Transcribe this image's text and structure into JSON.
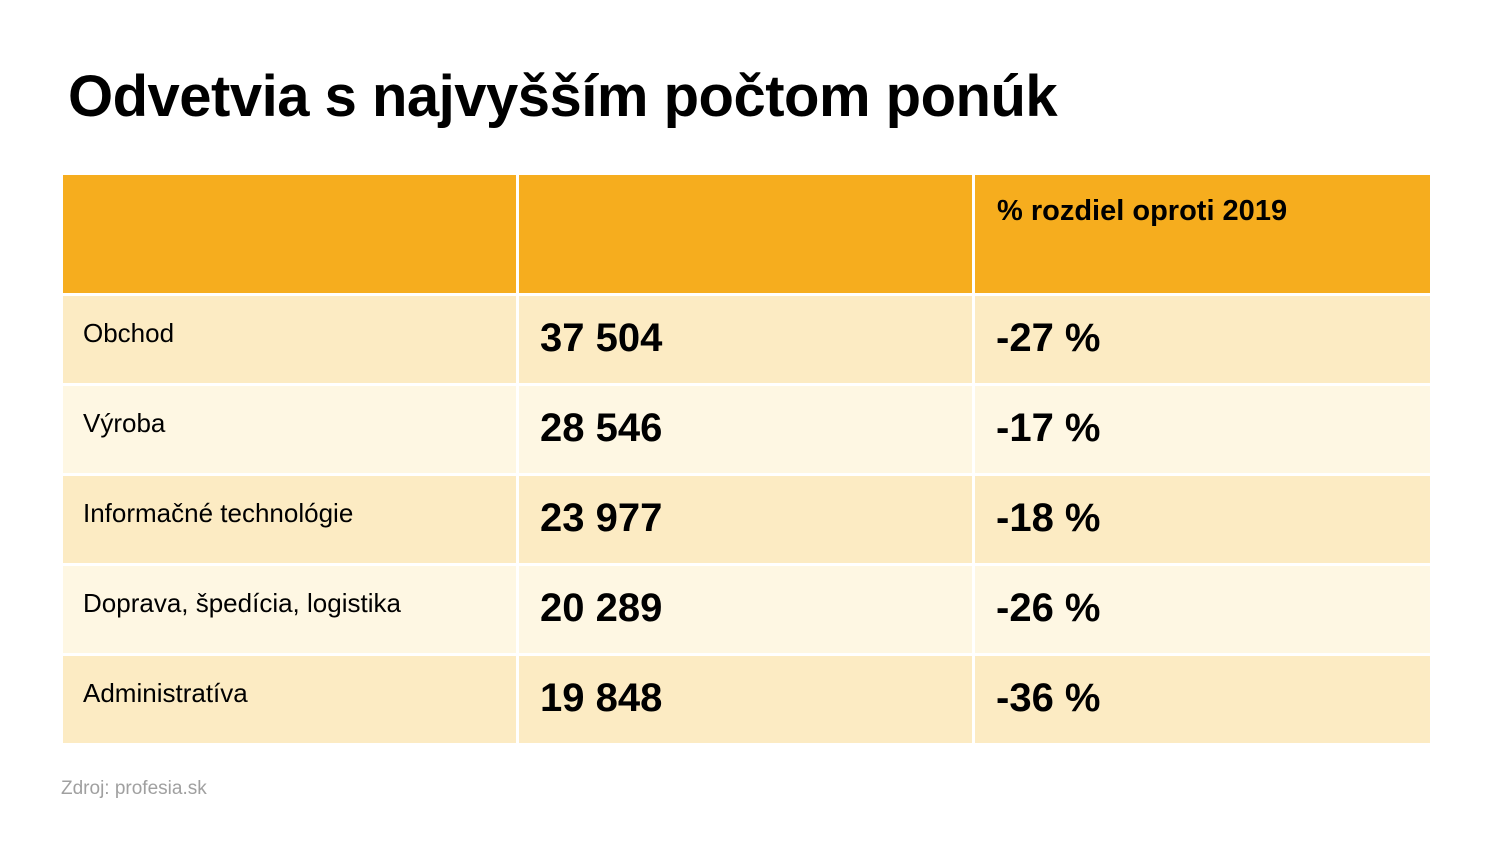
{
  "title": "Odvetvia s najvyšším počtom ponúk",
  "source": "Zdroj: profesia.sk",
  "colors": {
    "header": "#f6ad1e",
    "row_odd": "#fcebc3",
    "row_even": "#fef7e3"
  },
  "chart_data": {
    "type": "table",
    "title": "Odvetvia s najvyšším počtom ponúk",
    "columns": [
      "",
      "",
      "% rozdiel oproti 2019"
    ],
    "rows": [
      [
        "Obchod",
        "37 504",
        "-27 %"
      ],
      [
        "Výroba",
        "28 546",
        "-17 %"
      ],
      [
        "Informačné technológie",
        "23 977",
        "-18 %"
      ],
      [
        "Doprava, špedícia, logistika",
        "20 289",
        "-26 %"
      ],
      [
        "Administratíva",
        "19 848",
        "-36 %"
      ]
    ],
    "source": "Zdroj: profesia.sk"
  }
}
